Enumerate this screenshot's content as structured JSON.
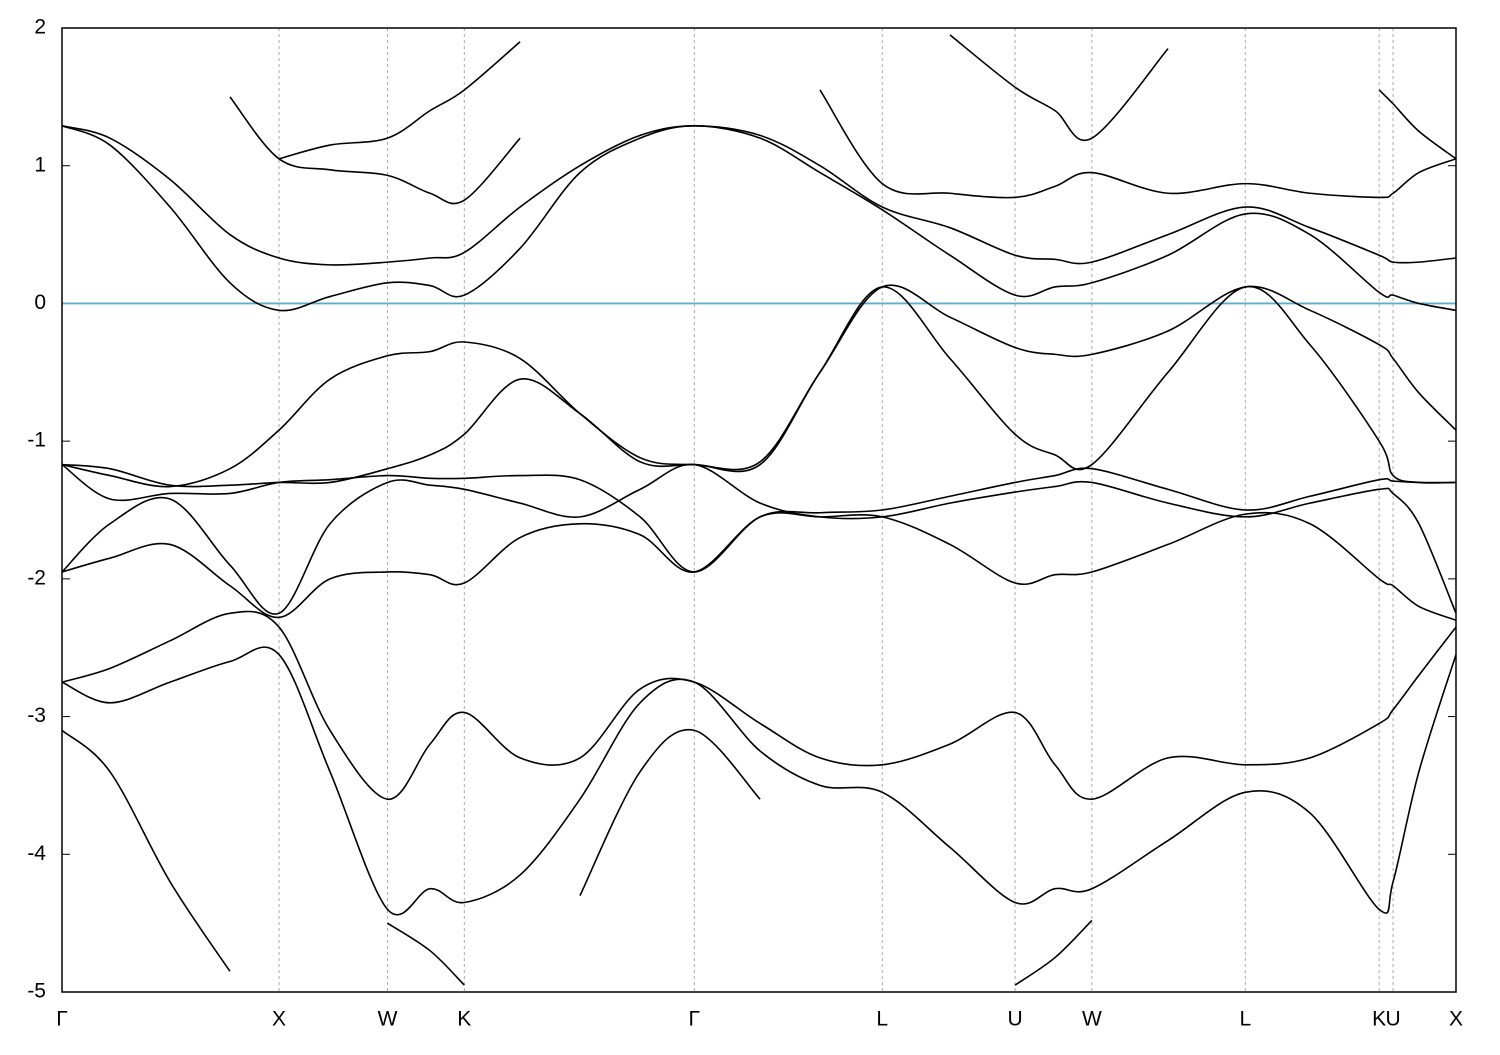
{
  "chart_data": {
    "type": "line",
    "xlim": [
      0,
      6.424
    ],
    "ylim": [
      -5,
      2
    ],
    "yticks": [
      -5,
      -4,
      -3,
      -2,
      -1,
      0,
      1,
      2
    ],
    "xticks": [
      {
        "value": 0,
        "label": "Γ"
      },
      {
        "value": 1,
        "label": "X"
      },
      {
        "value": 1.5,
        "label": "W"
      },
      {
        "value": 1.854,
        "label": "K"
      },
      {
        "value": 2.914,
        "label": "Γ"
      },
      {
        "value": 3.78,
        "label": "L"
      },
      {
        "value": 4.392,
        "label": "U"
      },
      {
        "value": 4.746,
        "label": "W"
      },
      {
        "value": 5.453,
        "label": "L"
      },
      {
        "value": 6.07,
        "label": "K"
      },
      {
        "value": 6.134,
        "label": "U"
      },
      {
        "value": 6.424,
        "label": "X"
      }
    ],
    "grid": "x",
    "hline": {
      "value": 0,
      "color": "#5eaecb"
    },
    "x": [
      0,
      0.221,
      0.498,
      0.774,
      1,
      1.235,
      1.5,
      1.696,
      1.854,
      2.111,
      2.387,
      2.664,
      2.914,
      3.217,
      3.493,
      3.78,
      4.092,
      4.392,
      4.576,
      4.746,
      5.097,
      5.453,
      5.751,
      6.07,
      6.134,
      6.253,
      6.424
    ],
    "series": [
      {
        "color": "#000000",
        "values": [
          1.29,
          1.15,
          0.7,
          0.15,
          -0.05,
          0.05,
          0.15,
          0.13,
          0.06,
          0.4,
          0.95,
          1.2,
          1.29,
          1.2,
          0.95,
          0.68,
          0.35,
          0.06,
          0.12,
          0.15,
          0.35,
          0.65,
          0.5,
          0.08,
          0.06,
          0.0,
          -0.05
        ]
      },
      {
        "color": "#000000",
        "values": [
          1.29,
          1.2,
          0.9,
          0.5,
          0.33,
          0.28,
          0.3,
          0.33,
          0.37,
          0.7,
          1.0,
          1.22,
          1.29,
          1.22,
          1.0,
          0.7,
          0.55,
          0.35,
          0.32,
          0.3,
          0.5,
          0.7,
          0.55,
          0.35,
          0.3,
          0.3,
          0.33
        ]
      },
      {
        "color": "#000000",
        "values": [
          null,
          null,
          null,
          1.5,
          1.05,
          0.97,
          0.93,
          0.8,
          0.75,
          1.2,
          null,
          null,
          null,
          null,
          1.55,
          0.87,
          0.8,
          0.77,
          0.85,
          0.95,
          0.8,
          0.87,
          0.8,
          0.77,
          0.8,
          0.95,
          1.05
        ]
      },
      {
        "color": "#000000",
        "values": [
          null,
          null,
          null,
          null,
          1.05,
          1.15,
          1.2,
          1.4,
          1.55,
          1.9,
          null,
          null,
          null,
          null,
          null,
          null,
          1.95,
          1.57,
          1.4,
          1.2,
          1.85,
          null,
          null,
          1.55,
          1.45,
          1.25,
          1.05
        ]
      },
      {
        "color": "#000000",
        "values": [
          -1.17,
          -1.25,
          -1.33,
          -1.2,
          -0.92,
          -0.55,
          -0.38,
          -0.35,
          -0.28,
          -0.4,
          -0.8,
          -1.12,
          -1.17,
          -1.15,
          -0.5,
          0.12,
          -0.1,
          -0.32,
          -0.37,
          -0.37,
          -0.2,
          0.12,
          -0.05,
          -0.3,
          -0.4,
          -0.65,
          -0.92
        ]
      },
      {
        "color": "#000000",
        "values": [
          -1.17,
          -1.2,
          -1.32,
          -1.32,
          -1.3,
          -1.3,
          -1.2,
          -1.1,
          -0.95,
          -0.55,
          -0.8,
          -1.15,
          -1.17,
          -1.17,
          -0.5,
          0.12,
          -0.4,
          -0.95,
          -1.1,
          -1.17,
          -0.5,
          0.12,
          -0.3,
          -1.0,
          -1.25,
          -1.3,
          -1.3
        ]
      },
      {
        "color": "#000000",
        "values": [
          -1.17,
          -1.42,
          -1.38,
          -1.38,
          -1.3,
          -1.28,
          -1.25,
          -1.27,
          -1.27,
          -1.25,
          -1.28,
          -1.55,
          -1.95,
          -1.55,
          -1.52,
          -1.5,
          -1.4,
          -1.3,
          -1.25,
          -1.2,
          -1.35,
          -1.5,
          -1.4,
          -1.28,
          -1.29,
          -1.3,
          -1.3
        ]
      },
      {
        "color": "#000000",
        "values": [
          -1.95,
          -1.6,
          -1.42,
          -1.9,
          -2.25,
          -1.6,
          -1.3,
          -1.32,
          -1.35,
          -1.45,
          -1.55,
          -1.35,
          -1.17,
          -1.45,
          -1.55,
          -1.55,
          -1.45,
          -1.37,
          -1.33,
          -1.3,
          -1.45,
          -1.55,
          -1.45,
          -1.35,
          -1.38,
          -1.6,
          -2.25
        ]
      },
      {
        "color": "#000000",
        "values": [
          -1.95,
          -1.85,
          -1.75,
          -2.05,
          -2.28,
          -2.0,
          -1.95,
          -1.97,
          -2.03,
          -1.7,
          -1.6,
          -1.68,
          -1.95,
          -1.55,
          -1.55,
          -1.55,
          -1.75,
          -2.03,
          -1.97,
          -1.95,
          -1.75,
          -1.53,
          -1.6,
          -2.0,
          -2.05,
          -2.2,
          -2.3
        ]
      },
      {
        "color": "#000000",
        "values": [
          -2.75,
          -2.65,
          -2.45,
          -2.25,
          -2.35,
          -3.1,
          -3.6,
          -3.2,
          -2.97,
          -3.3,
          -3.3,
          -2.8,
          -2.75,
          -3.05,
          -3.3,
          -3.35,
          -3.2,
          -2.97,
          -3.35,
          -3.6,
          -3.3,
          -3.35,
          -3.3,
          -3.05,
          -2.95,
          -2.7,
          -2.35
        ]
      },
      {
        "color": "#000000",
        "values": [
          -2.75,
          -2.9,
          -2.75,
          -2.6,
          -2.55,
          -3.4,
          -4.4,
          -4.25,
          -4.35,
          -4.15,
          -3.6,
          -2.9,
          -2.75,
          -3.25,
          -3.5,
          -3.55,
          -3.95,
          -4.35,
          -4.25,
          -4.25,
          -3.9,
          -3.55,
          -3.7,
          -4.4,
          -4.2,
          -3.4,
          -2.55
        ]
      },
      {
        "color": "#000000",
        "values": [
          -3.1,
          -3.4,
          -4.2,
          -4.85,
          null,
          null,
          null,
          null,
          null,
          null,
          -4.3,
          -3.4,
          -3.1,
          -3.6,
          null,
          null,
          null,
          null,
          null,
          null,
          null,
          null,
          null,
          null,
          null,
          null,
          null
        ]
      },
      {
        "color": "#000000",
        "values": [
          null,
          null,
          null,
          null,
          null,
          null,
          -4.5,
          -4.7,
          -4.95,
          null,
          null,
          null,
          null,
          null,
          null,
          null,
          null,
          -4.95,
          -4.75,
          -4.48,
          null,
          null,
          null,
          null,
          null,
          null,
          null
        ]
      }
    ]
  }
}
